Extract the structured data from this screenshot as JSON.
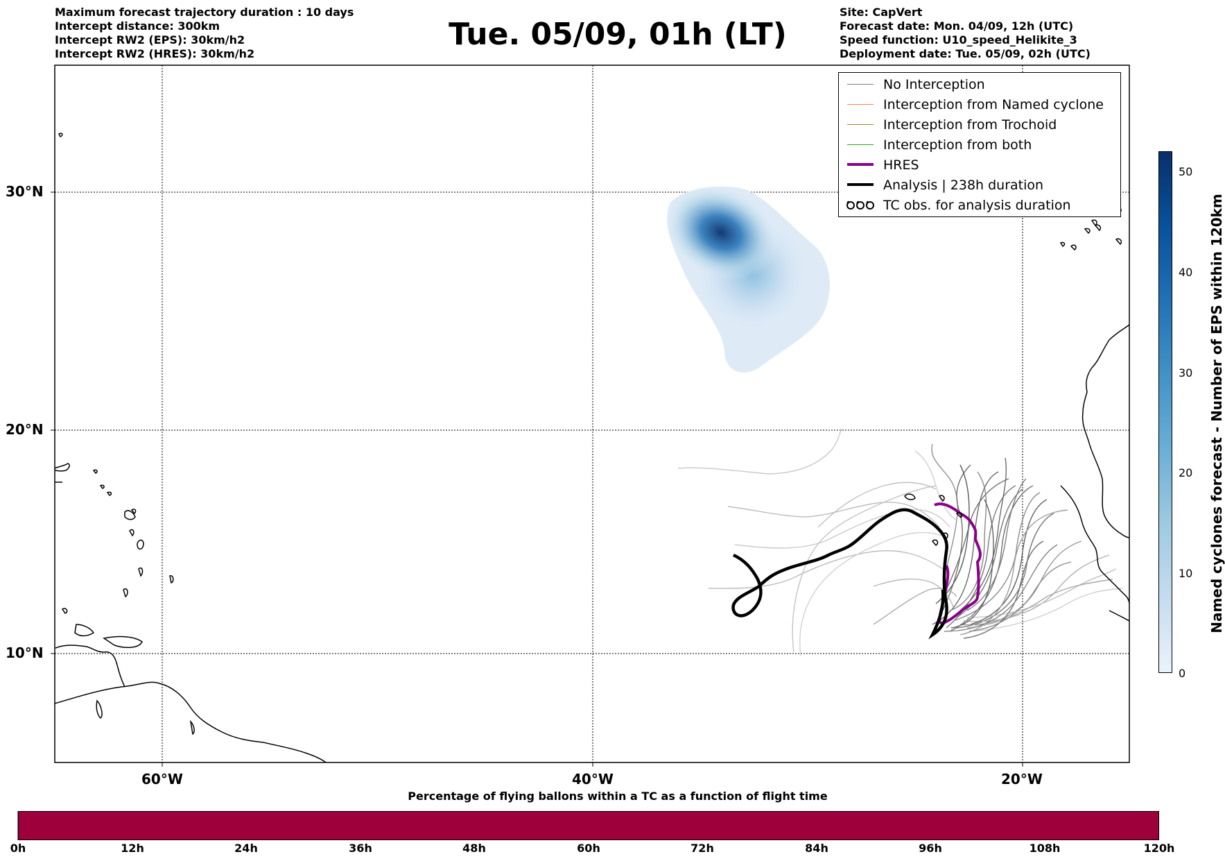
{
  "header": {
    "left_lines": [
      "Maximum forecast trajectory duration : 10 days",
      "Intercept distance: 300km",
      "Intercept RW2 (EPS):  30km/h2",
      "Intercept RW2 (HRES): 30km/h2"
    ],
    "title": "Tue. 05/09, 01h (LT)",
    "right_lines": [
      "Site: CapVert",
      "Forecast date: Mon. 04/09, 12h (UTC)",
      "Speed function: U10_speed_Helikite_3",
      "Deployment date: Tue. 05/09, 02h (UTC)"
    ]
  },
  "map": {
    "lat_labels": [
      "30°N",
      "20°N",
      "10°N"
    ],
    "lon_labels": [
      "60°W",
      "40°W",
      "20°W"
    ]
  },
  "legend": {
    "items": [
      {
        "label": "No Interception",
        "color": "#808080",
        "style": "thin"
      },
      {
        "label": "Interception from Named cyclone",
        "color": "#ff7f50",
        "style": "thin"
      },
      {
        "label": "Interception from Trochoid",
        "color": "#9a8a2a",
        "style": "thin"
      },
      {
        "label": "Interception from both",
        "color": "#2ca02c",
        "style": "thin"
      },
      {
        "label": "HRES",
        "color": "#8b008b",
        "style": "thick"
      },
      {
        "label": "Analysis | 238h duration",
        "color": "#000000",
        "style": "thick"
      },
      {
        "label": "TC obs. for analysis duration",
        "color": "#000000",
        "style": "symbol"
      }
    ]
  },
  "bottom_colorbar": {
    "title": "Percentage of flying ballons within a TC as a function of flight time",
    "ticks": [
      "0h",
      "12h",
      "24h",
      "36h",
      "48h",
      "60h",
      "72h",
      "84h",
      "96h",
      "108h",
      "120h"
    ],
    "color": "#9d003a"
  },
  "right_colorbar": {
    "label": "Named cyclones forecast - Number of EPS within 120km",
    "ticks": [
      "0",
      "10",
      "20",
      "30",
      "40",
      "50"
    ]
  }
}
